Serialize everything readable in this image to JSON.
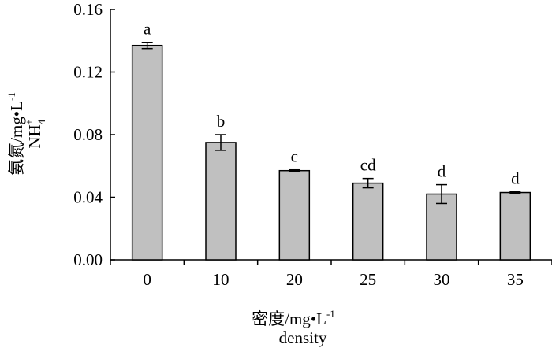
{
  "chart_data": {
    "type": "bar",
    "categories": [
      "0",
      "10",
      "20",
      "25",
      "30",
      "35"
    ],
    "values": [
      0.137,
      0.075,
      0.057,
      0.049,
      0.042,
      0.043
    ],
    "errors": [
      0.002,
      0.005,
      0.0005,
      0.003,
      0.006,
      0.0005
    ],
    "significance": [
      "a",
      "b",
      "c",
      "cd",
      "d",
      "d"
    ],
    "ylim": [
      0,
      0.16
    ],
    "yticks": [
      "0.00",
      "0.04",
      "0.08",
      "0.12",
      "0.16"
    ],
    "ylabel": {
      "line1_main": "氨氮/mg",
      "line1_dot": "•",
      "line1_unit": "L",
      "line1_sup": "-1",
      "line2_main": "NH",
      "line2_sub": "4",
      "line2_sup": "+"
    },
    "xlabel": {
      "line1_main": "密度/mg",
      "line1_dot": "•",
      "line1_unit": "L",
      "line1_sup": "-1",
      "line2": "density"
    },
    "colors": {
      "bar_fill": "#c0c0c0",
      "bar_stroke": "#000000",
      "axis": "#000000"
    },
    "grid": false
  }
}
